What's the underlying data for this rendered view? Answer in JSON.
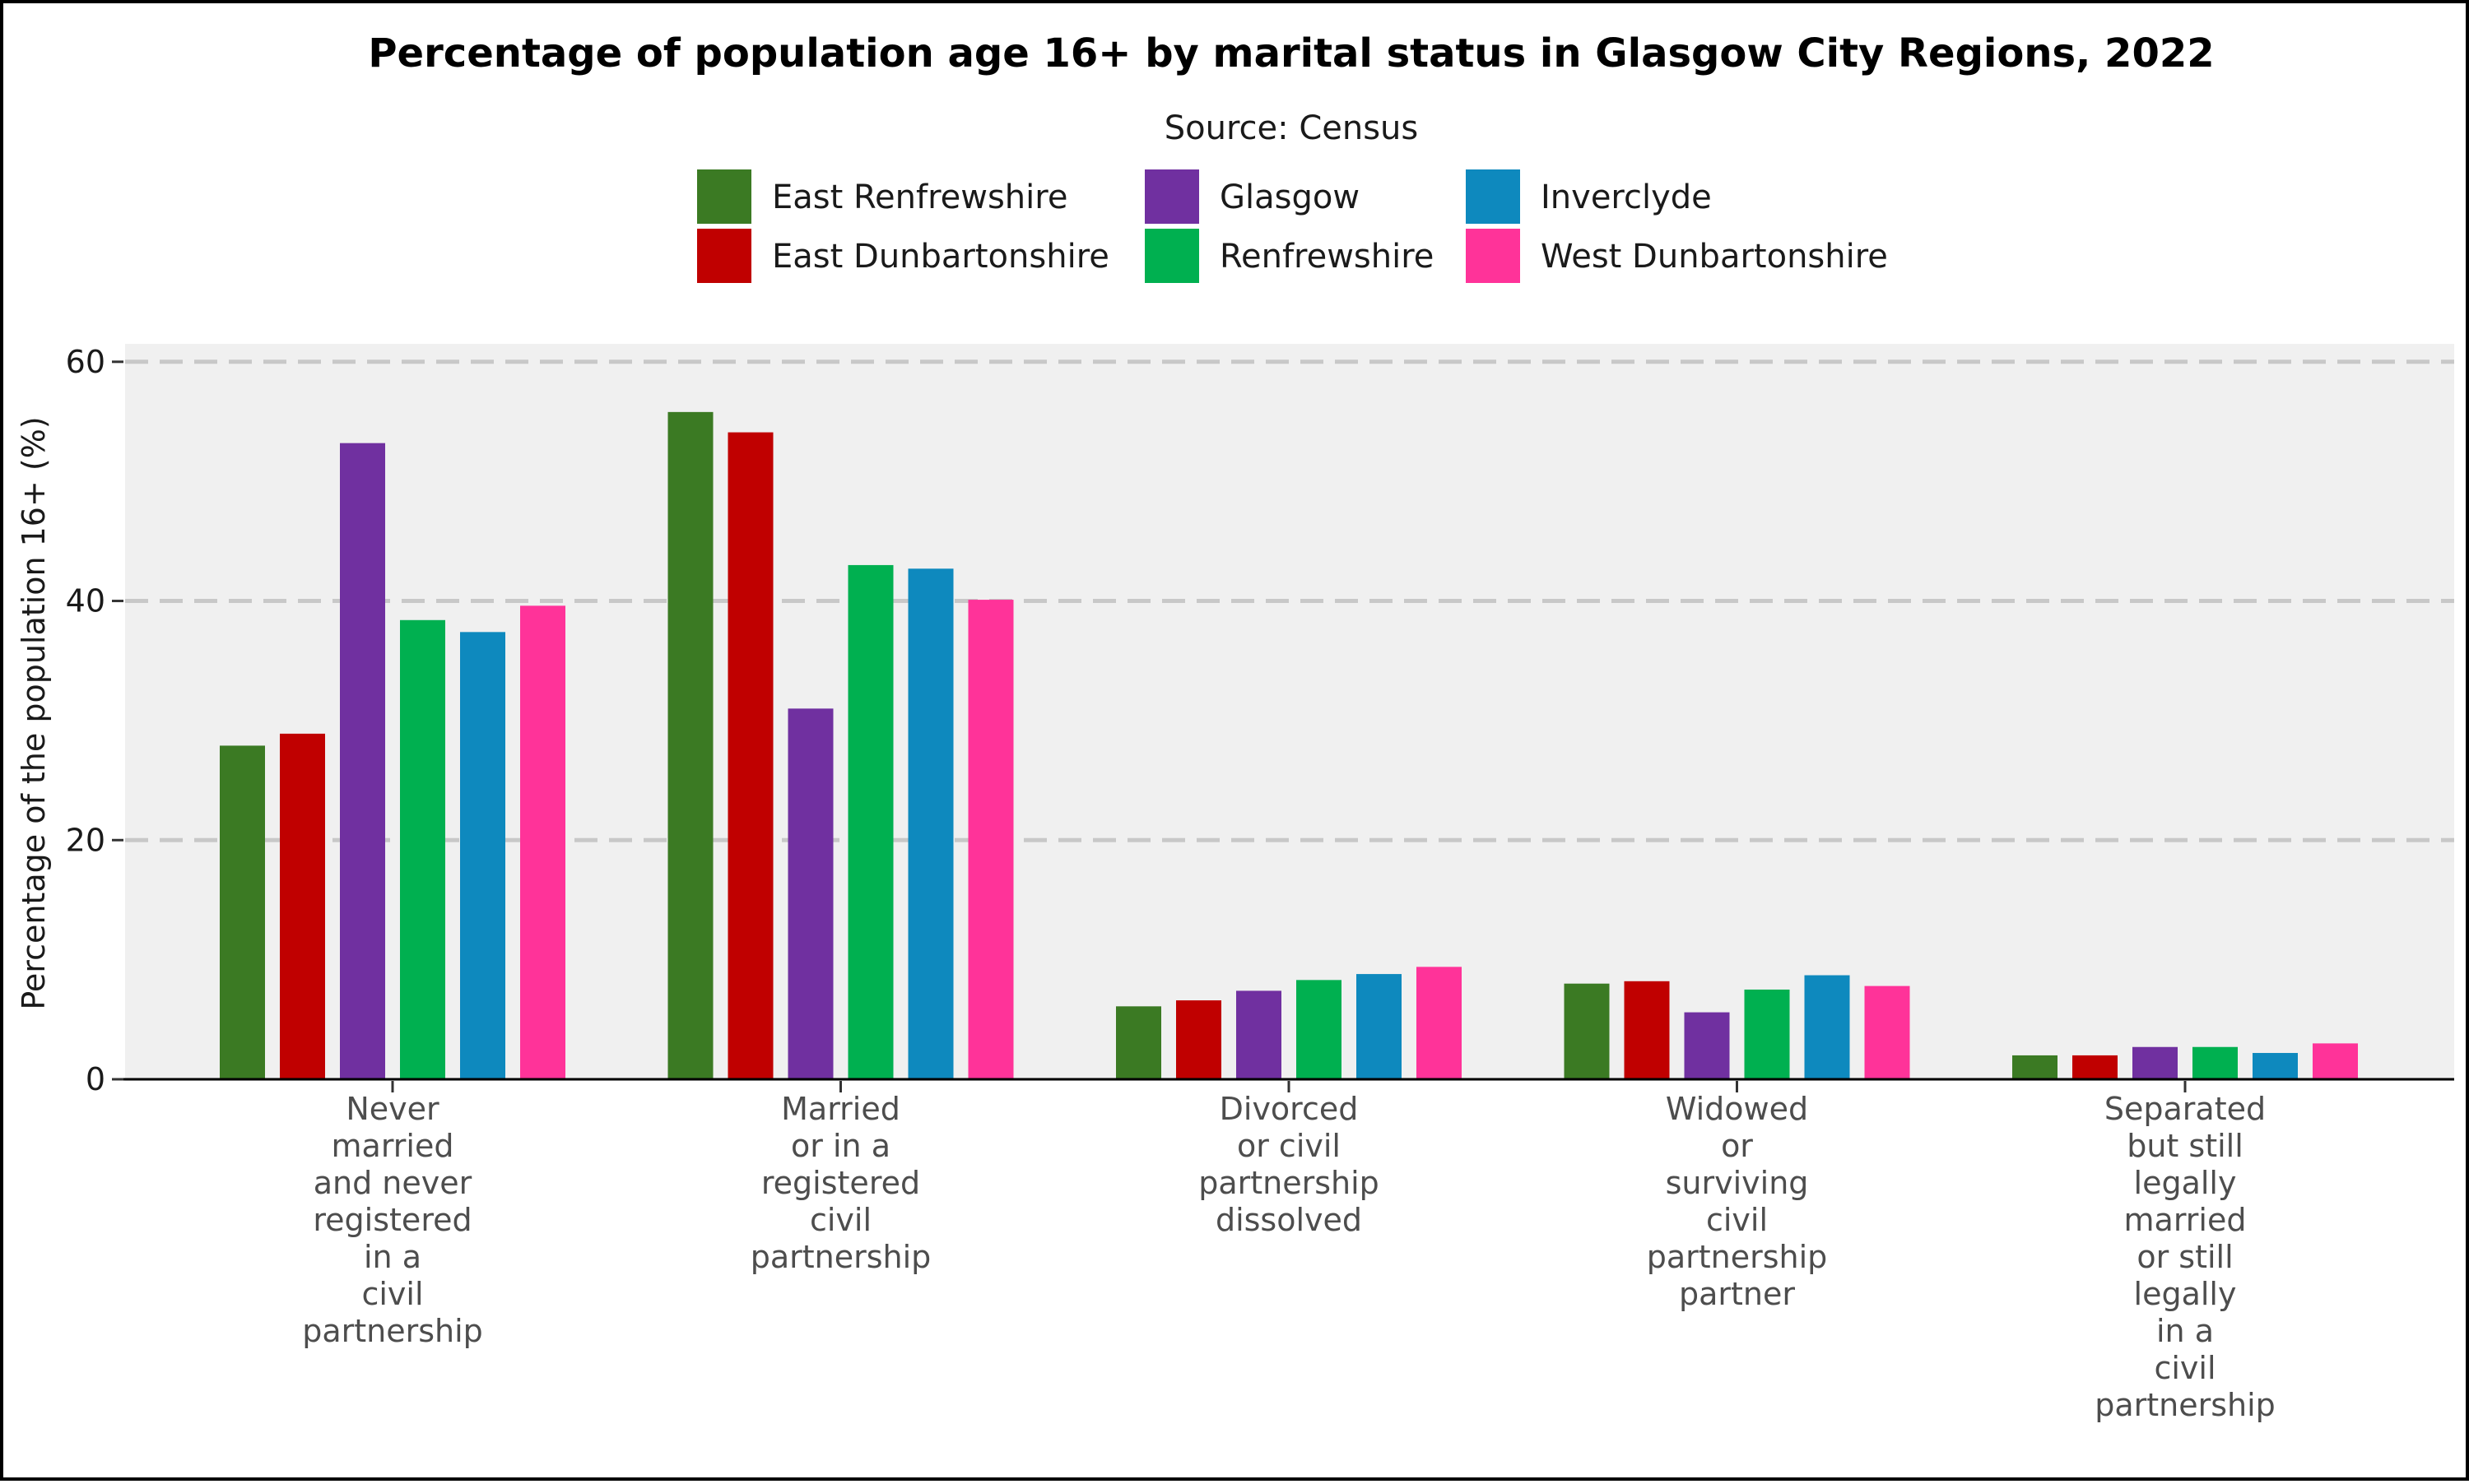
{
  "chart_data": {
    "type": "bar",
    "title": "Percentage of population age 16+ by marital status in Glasgow City Regions, 2022",
    "subtitle": "Source: Census",
    "ylabel": "Percentage of the population 16+ (%)",
    "xlabel": "",
    "ylim": [
      0,
      61.5
    ],
    "yticks": [
      0,
      20,
      40,
      60
    ],
    "grid": "horizontal dashed",
    "legend_position": "top",
    "categories": [
      [
        "Never",
        "married",
        "and never",
        "registered",
        "in a",
        "civil",
        "partnership"
      ],
      [
        "Married",
        "or in a",
        "registered",
        "civil",
        "partnership"
      ],
      [
        "Divorced",
        "or civil",
        "partnership",
        "dissolved"
      ],
      [
        "Widowed",
        "or",
        "surviving",
        "civil",
        "partnership",
        "partner"
      ],
      [
        "Separated",
        "but still",
        "legally",
        "married",
        "or still",
        "legally",
        "in a",
        "civil",
        "partnership"
      ]
    ],
    "series": [
      {
        "name": "East Renfrewshire",
        "color": "#3b7a23",
        "values": [
          27.9,
          55.8,
          6.1,
          8.0,
          2.0
        ]
      },
      {
        "name": "East Dunbartonshire",
        "color": "#c00000",
        "values": [
          28.9,
          54.1,
          6.6,
          8.2,
          2.0
        ]
      },
      {
        "name": "Glasgow",
        "color": "#7030a0",
        "values": [
          53.2,
          31.0,
          7.4,
          5.6,
          2.7
        ]
      },
      {
        "name": "Renfrewshire",
        "color": "#00b050",
        "values": [
          38.4,
          43.0,
          8.3,
          7.5,
          2.7
        ]
      },
      {
        "name": "Inverclyde",
        "color": "#0e89be",
        "values": [
          37.4,
          42.7,
          8.8,
          8.7,
          2.2
        ]
      },
      {
        "name": "West Dunbartonshire",
        "color": "#ff3399",
        "values": [
          39.6,
          40.1,
          9.4,
          7.8,
          3.0
        ]
      }
    ]
  }
}
